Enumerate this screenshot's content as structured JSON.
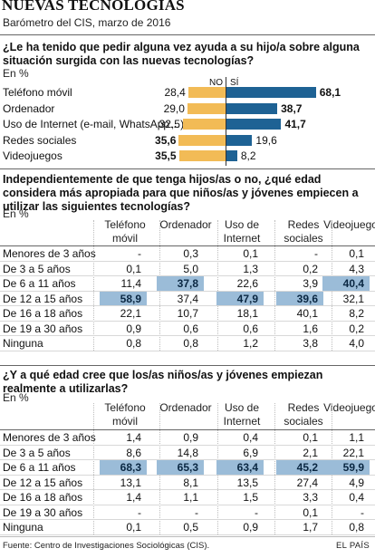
{
  "header": {
    "title": "NUEVAS TECNOLOGÍAS",
    "subtitle": "Barómetro del CIS, marzo de 2016"
  },
  "chart_data": [
    {
      "type": "bar",
      "title": "¿Le ha tenido que pedir alguna vez ayuda a su hijo/a sobre alguna situación surgida con las nuevas tecnologías?",
      "unit": "En %",
      "categories": [
        "Teléfono móvil",
        "Ordenador",
        "Uso de Internet (e-mail, WhatsApp…)",
        "Redes sociales",
        "Videojuegos"
      ],
      "series": [
        {
          "name": "NO",
          "values": [
            28.4,
            29.0,
            32.5,
            35.6,
            35.5
          ],
          "labels": [
            "28,4",
            "29,0",
            "32,5",
            "35,6",
            "35,5"
          ],
          "color": "#f2bb56"
        },
        {
          "name": "SÍ",
          "values": [
            68.1,
            38.7,
            41.7,
            19.6,
            8.2
          ],
          "labels": [
            "68,1",
            "38,7",
            "41,7",
            "19,6",
            "8,2"
          ],
          "color": "#1e6294"
        }
      ],
      "bold_labels": [
        "68,1",
        "38,7",
        "41,7",
        "35,6",
        "35,5"
      ]
    },
    {
      "type": "table",
      "title": "Independientemente de que tenga hijos/as o no, ¿qué edad considera más apropiada para que niños/as y jóvenes empiecen a utilizar las siguientes tecnologías?",
      "unit": "En %",
      "columns": [
        "Teléfono móvil",
        "Ordenador",
        "Uso de Internet",
        "Redes sociales",
        "Videojuegos"
      ],
      "rows": [
        {
          "label": "Menores de 3 años",
          "values": [
            "-",
            "0,3",
            "0,1",
            "-",
            "0,1"
          ]
        },
        {
          "label": "De 3 a 5 años",
          "values": [
            "0,1",
            "5,0",
            "1,3",
            "0,2",
            "4,3"
          ]
        },
        {
          "label": "De 6 a 11 años",
          "values": [
            "11,4",
            "37,8",
            "22,6",
            "3,9",
            "40,4"
          ]
        },
        {
          "label": "De 12 a 15 años",
          "values": [
            "58,9",
            "37,4",
            "47,9",
            "39,6",
            "32,1"
          ]
        },
        {
          "label": "De 16 a 18 años",
          "values": [
            "22,1",
            "10,7",
            "18,1",
            "40,1",
            "8,2"
          ]
        },
        {
          "label": "De 19 a 30 años",
          "values": [
            "0,9",
            "0,6",
            "0,6",
            "1,6",
            "0,2"
          ]
        },
        {
          "label": "Ninguna",
          "values": [
            "0,8",
            "0,8",
            "1,2",
            "3,8",
            "4,0"
          ]
        }
      ],
      "highlight": [
        [
          3,
          0
        ],
        [
          2,
          1
        ],
        [
          3,
          2
        ],
        [
          3,
          3
        ],
        [
          2,
          4
        ]
      ]
    },
    {
      "type": "table",
      "title": "¿Y a qué edad cree que los/as niños/as y jóvenes empiezan realmente a utilizarlas?",
      "unit": "En %",
      "columns": [
        "Teléfono móvil",
        "Ordenador",
        "Uso de Internet",
        "Redes sociales",
        "Videojuegos"
      ],
      "rows": [
        {
          "label": "Menores de 3 años",
          "values": [
            "1,4",
            "0,9",
            "0,4",
            "0,1",
            "1,1"
          ]
        },
        {
          "label": "De 3 a 5 años",
          "values": [
            "8,6",
            "14,8",
            "6,9",
            "2,1",
            "22,1"
          ]
        },
        {
          "label": "De 6 a 11 años",
          "values": [
            "68,3",
            "65,3",
            "63,4",
            "45,2",
            "59,9"
          ]
        },
        {
          "label": "De 12 a 15 años",
          "values": [
            "13,1",
            "8,1",
            "13,5",
            "27,4",
            "4,9"
          ]
        },
        {
          "label": "De 16 a 18 años",
          "values": [
            "1,4",
            "1,1",
            "1,5",
            "3,3",
            "0,4"
          ]
        },
        {
          "label": "De 19 a 30 años",
          "values": [
            "-",
            "-",
            "-",
            "0,1",
            "-"
          ]
        },
        {
          "label": "Ninguna",
          "values": [
            "0,1",
            "0,5",
            "0,9",
            "1,7",
            "0,8"
          ]
        }
      ],
      "highlight": [
        [
          2,
          0
        ],
        [
          2,
          1
        ],
        [
          2,
          2
        ],
        [
          2,
          3
        ],
        [
          2,
          4
        ]
      ]
    }
  ],
  "footer": {
    "source": "Fuente: Centro de Investigaciones Sociológicas (CIS).",
    "brand": "EL PAÍS"
  }
}
